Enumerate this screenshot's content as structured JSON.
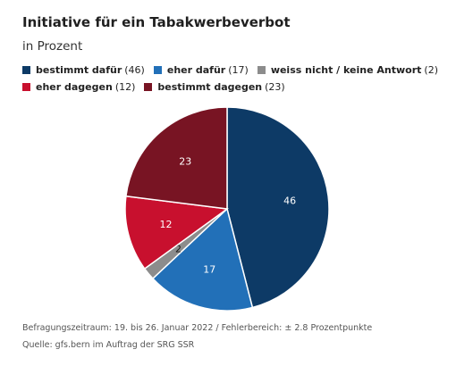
{
  "title": "Initiative für ein Tabakwerbeverbot",
  "subtitle": "in Prozent",
  "colors": {
    "bestimmt_dafuer": "#0d3a66",
    "eher_dafuer": "#2270b8",
    "weiss_nicht": "#8c8c8c",
    "eher_dagegen": "#c8102e",
    "bestimmt_dagegen": "#781423"
  },
  "legend": [
    {
      "name": "bestimmt dafür",
      "value": "(46)"
    },
    {
      "name": "eher dafür",
      "value": "(17)"
    },
    {
      "name": "weiss nicht / keine Antwort",
      "value": "(2)"
    },
    {
      "name": "eher dagegen",
      "value": "(12)"
    },
    {
      "name": "bestimmt dagegen",
      "value": "(23)"
    }
  ],
  "chart_data": {
    "type": "pie",
    "title": "Initiative für ein Tabakwerbeverbot",
    "subtitle": "in Prozent",
    "categories": [
      "bestimmt dafür",
      "eher dafür",
      "weiss nicht / keine Antwort",
      "eher dagegen",
      "bestimmt dagegen"
    ],
    "values": [
      46,
      17,
      2,
      12,
      23
    ],
    "colors": [
      "#0d3a66",
      "#2270b8",
      "#8c8c8c",
      "#c8102e",
      "#781423"
    ],
    "start": "12 o'clock, clockwise",
    "legend_position": "top"
  },
  "footer": {
    "line1": "Befragungszeitraum: 19. bis 26. Januar 2022 / Fehlerbereich: ± 2.8 Prozentpunkte",
    "line2": "Quelle: gfs.bern im Auftrag der SRG SSR"
  }
}
